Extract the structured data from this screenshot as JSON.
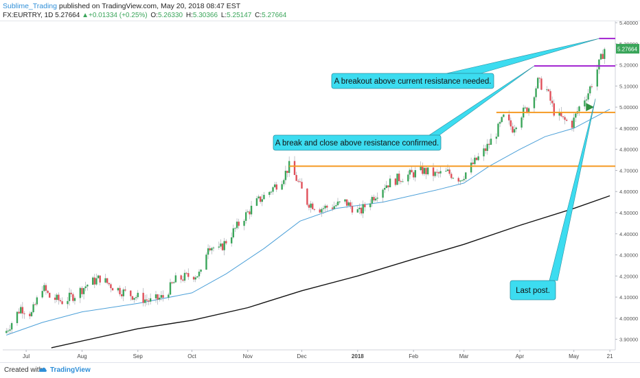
{
  "header": {
    "author": "Sublime_Trading",
    "published": "published on TradingView.com, May 20, 2018 08:47 EST",
    "symbol": "FX:EURTRY, 1D",
    "last": "5.27664",
    "change_arrow": "▲",
    "change": "+0.01334 (+0.25%)",
    "o_label": "O:",
    "o": "5.26330",
    "h_label": "H:",
    "h": "5.30366",
    "l_label": "L:",
    "l": "5.25147",
    "c_label": "C:",
    "c": "5.27664"
  },
  "footer": {
    "created": "Created with",
    "brand": "TradingView"
  },
  "colors": {
    "up": "#3aa55a",
    "down": "#e0505a",
    "ma_short": "#4a9fd8",
    "ma_long": "#111111",
    "support": "#f59a23",
    "resistance": "#a020d0",
    "callout": "#3cdcf0",
    "price_tag": "#3aa55a"
  },
  "chart_data": {
    "type": "candlestick",
    "ylim": [
      3.85,
      5.41
    ],
    "y_ticks": [
      "3.90000",
      "4.00000",
      "4.10000",
      "4.20000",
      "4.30000",
      "4.40000",
      "4.50000",
      "4.60000",
      "4.70000",
      "4.80000",
      "4.90000",
      "5.00000",
      "5.10000",
      "5.20000",
      "5.30000",
      "5.40000"
    ],
    "y_tick_values": [
      3.9,
      4.0,
      4.1,
      4.2,
      4.3,
      4.4,
      4.5,
      4.6,
      4.7,
      4.8,
      4.9,
      5.0,
      5.1,
      5.2,
      5.3,
      5.4
    ],
    "x_ticks": [
      "Jul",
      "Aug",
      "Sep",
      "Oct",
      "Nov",
      "Dec",
      "2018",
      "Feb",
      "Mar",
      "Apr",
      "May",
      "21"
    ],
    "x_tick_dates": [
      "2017-07-01",
      "2017-08-01",
      "2017-09-01",
      "2017-10-01",
      "2017-11-01",
      "2017-12-01",
      "2018-01-01",
      "2018-02-01",
      "2018-03-01",
      "2018-04-01",
      "2018-05-01",
      "2018-05-21"
    ],
    "price_label": "5.27664",
    "price_value": 5.27664,
    "close_path": [
      [
        "2017-06-20",
        3.94
      ],
      [
        "2017-06-28",
        4.05
      ],
      [
        "2017-07-04",
        4.02
      ],
      [
        "2017-07-10",
        4.15
      ],
      [
        "2017-07-14",
        4.1
      ],
      [
        "2017-07-21",
        4.08
      ],
      [
        "2017-07-28",
        4.11
      ],
      [
        "2017-08-04",
        4.16
      ],
      [
        "2017-08-11",
        4.19
      ],
      [
        "2017-08-18",
        4.15
      ],
      [
        "2017-08-25",
        4.12
      ],
      [
        "2017-09-01",
        4.1
      ],
      [
        "2017-09-08",
        4.08
      ],
      [
        "2017-09-15",
        4.1
      ],
      [
        "2017-09-22",
        4.18
      ],
      [
        "2017-09-29",
        4.2
      ],
      [
        "2017-10-06",
        4.21
      ],
      [
        "2017-10-10",
        4.35
      ],
      [
        "2017-10-16",
        4.32
      ],
      [
        "2017-10-23",
        4.4
      ],
      [
        "2017-10-30",
        4.48
      ],
      [
        "2017-11-06",
        4.55
      ],
      [
        "2017-11-13",
        4.6
      ],
      [
        "2017-11-20",
        4.66
      ],
      [
        "2017-11-24",
        4.72
      ],
      [
        "2017-11-28",
        4.66
      ],
      [
        "2017-12-04",
        4.55
      ],
      [
        "2017-12-11",
        4.52
      ],
      [
        "2017-12-18",
        4.53
      ],
      [
        "2017-12-25",
        4.55
      ],
      [
        "2018-01-02",
        4.5
      ],
      [
        "2018-01-09",
        4.57
      ],
      [
        "2018-01-16",
        4.63
      ],
      [
        "2018-01-23",
        4.66
      ],
      [
        "2018-01-30",
        4.68
      ],
      [
        "2018-02-06",
        4.7
      ],
      [
        "2018-02-13",
        4.68
      ],
      [
        "2018-02-20",
        4.69
      ],
      [
        "2018-02-27",
        4.66
      ],
      [
        "2018-03-06",
        4.73
      ],
      [
        "2018-03-13",
        4.8
      ],
      [
        "2018-03-19",
        4.88
      ],
      [
        "2018-03-23",
        4.95
      ],
      [
        "2018-03-28",
        4.9
      ],
      [
        "2018-04-02",
        4.97
      ],
      [
        "2018-04-06",
        5.0
      ],
      [
        "2018-04-11",
        5.12
      ],
      [
        "2018-04-16",
        5.08
      ],
      [
        "2018-04-20",
        4.98
      ],
      [
        "2018-04-25",
        4.94
      ],
      [
        "2018-04-30",
        4.92
      ],
      [
        "2018-05-04",
        5.0
      ],
      [
        "2018-05-09",
        5.07
      ],
      [
        "2018-05-14",
        5.18
      ],
      [
        "2018-05-18",
        5.27664
      ]
    ],
    "ma_short": [
      [
        "2017-06-20",
        3.92
      ],
      [
        "2017-07-10",
        3.98
      ],
      [
        "2017-08-01",
        4.03
      ],
      [
        "2017-09-01",
        4.07
      ],
      [
        "2017-10-01",
        4.12
      ],
      [
        "2017-10-20",
        4.21
      ],
      [
        "2017-11-10",
        4.33
      ],
      [
        "2017-11-30",
        4.46
      ],
      [
        "2017-12-20",
        4.52
      ],
      [
        "2018-01-15",
        4.55
      ],
      [
        "2018-02-15",
        4.61
      ],
      [
        "2018-03-01",
        4.64
      ],
      [
        "2018-03-15",
        4.72
      ],
      [
        "2018-04-01",
        4.8
      ],
      [
        "2018-04-15",
        4.86
      ],
      [
        "2018-05-01",
        4.9
      ],
      [
        "2018-05-21",
        4.99
      ]
    ],
    "ma_long": [
      [
        "2017-07-15",
        3.86
      ],
      [
        "2017-09-01",
        3.95
      ],
      [
        "2017-10-01",
        3.99
      ],
      [
        "2017-11-01",
        4.05
      ],
      [
        "2017-12-01",
        4.13
      ],
      [
        "2018-01-01",
        4.2
      ],
      [
        "2018-02-01",
        4.28
      ],
      [
        "2018-03-01",
        4.35
      ],
      [
        "2018-04-01",
        4.44
      ],
      [
        "2018-05-01",
        4.52
      ],
      [
        "2018-05-21",
        4.58
      ]
    ],
    "levels": [
      {
        "name": "support-2017",
        "y": 4.72,
        "x_start": "2017-11-24",
        "x_end": "2018-05-24",
        "color": "#f59a23"
      },
      {
        "name": "support-2018",
        "y": 4.975,
        "x_start": "2018-03-19",
        "x_end": "2018-05-24",
        "color": "#f59a23"
      },
      {
        "name": "resistance-mid",
        "y": 5.195,
        "x_start": "2018-04-09",
        "x_end": "2018-05-24",
        "color": "#a020d0"
      },
      {
        "name": "resistance-top",
        "y": 5.325,
        "x_start": "2018-05-15",
        "x_end": "2018-05-24",
        "color": "#a020d0"
      }
    ],
    "annotations": [
      {
        "text": "A breakout above current resistance needed.",
        "anchor_date": "2018-05-15",
        "anchor_value": 5.325
      },
      {
        "text": "A break and close above resistance confirmed.",
        "anchor_date": "2018-04-09",
        "anchor_value": 5.195
      },
      {
        "text": "Last post.",
        "anchor_date": "2018-05-13",
        "anchor_value": 5.04
      }
    ],
    "marker": {
      "symbol": "arrow-right",
      "date": "2018-05-10",
      "value": 5.0,
      "color": "#2f8f3f"
    }
  }
}
